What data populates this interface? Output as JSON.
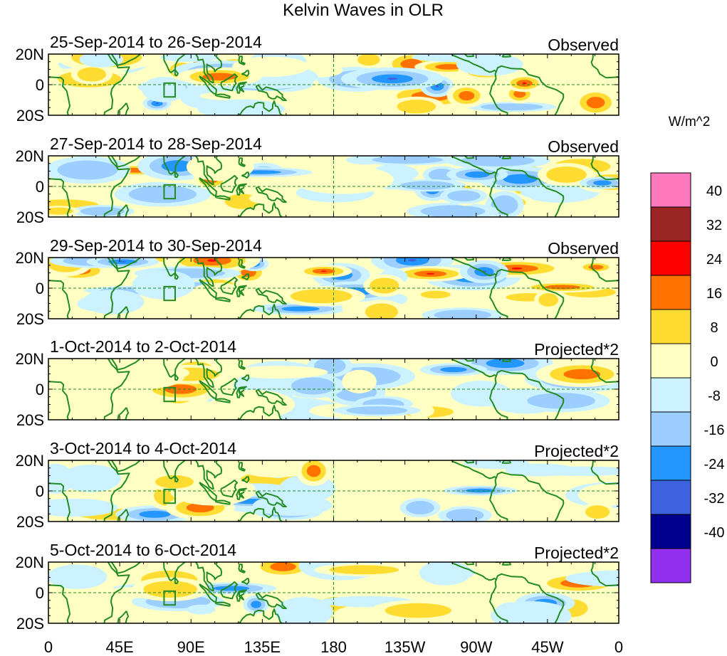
{
  "chart_data": {
    "type": "heatmap",
    "title": "Kelvin Waves in OLR",
    "units_label": "W/m^2",
    "lat_ticks": [
      "20N",
      "0",
      "20S"
    ],
    "lon_ticks": [
      "0",
      "45E",
      "90E",
      "135E",
      "180",
      "135W",
      "90W",
      "45W",
      "0"
    ],
    "colorbar": {
      "levels": [
        "40",
        "32",
        "24",
        "16",
        "8",
        "0",
        "-8",
        "-16",
        "-24",
        "-32",
        "-40"
      ],
      "colors": [
        "#ff79be",
        "#9b2525",
        "#ff0000",
        "#ff7100",
        "#ffdc32",
        "#ffffc3",
        "#ccf2ff",
        "#9cceff",
        "#2496ff",
        "#3d63e0",
        "#00008e",
        "#9130ef"
      ]
    },
    "panels": [
      {
        "name": "panel-1",
        "date": "25-Sep-2014 to 26-Sep-2014",
        "label": "Observed",
        "seed": 11
      },
      {
        "name": "panel-2",
        "date": "27-Sep-2014 to 28-Sep-2014",
        "label": "Observed",
        "seed": 23
      },
      {
        "name": "panel-3",
        "date": "29-Sep-2014 to 30-Sep-2014",
        "label": "Observed",
        "seed": 37
      },
      {
        "name": "panel-4",
        "date": "1-Oct-2014 to 2-Oct-2014",
        "label": "Projected*2",
        "seed": 41
      },
      {
        "name": "panel-5",
        "date": "3-Oct-2014 to 4-Oct-2014",
        "label": "Projected*2",
        "seed": 53
      },
      {
        "name": "panel-6",
        "date": "5-Oct-2014 to 6-Oct-2014",
        "label": "Projected*2",
        "seed": 67
      }
    ]
  }
}
